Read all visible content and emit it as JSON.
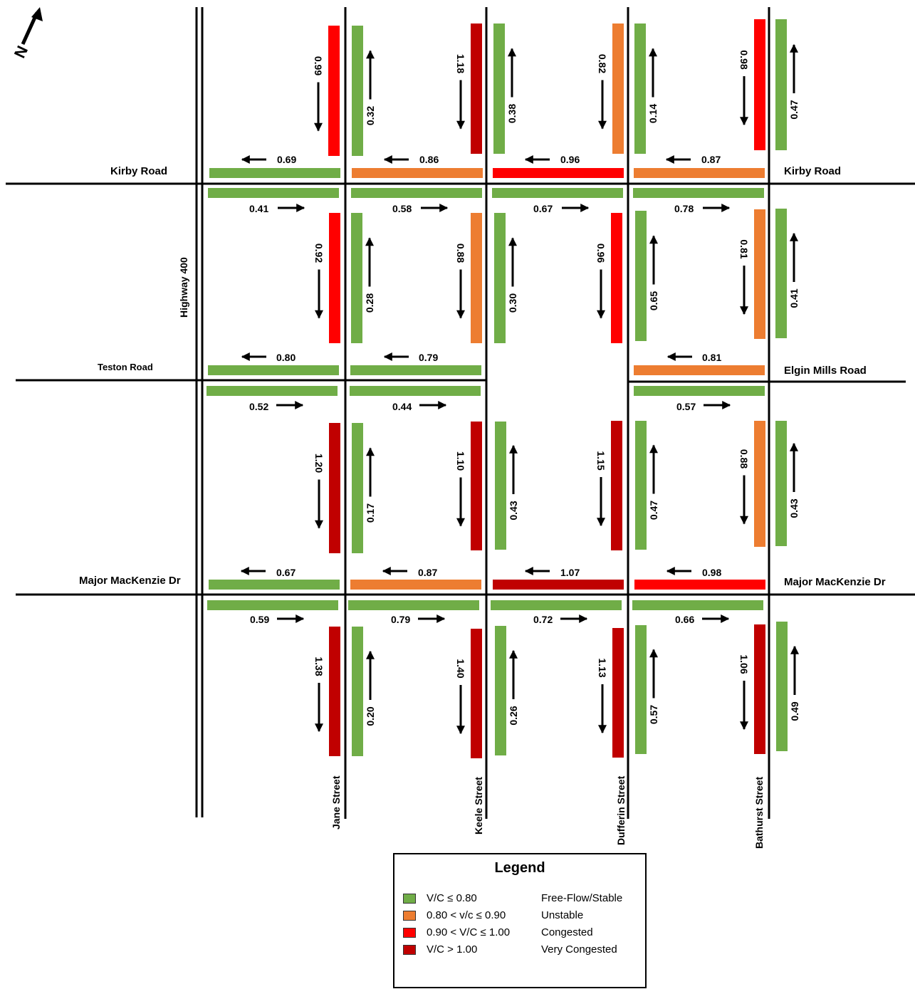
{
  "colors": {
    "free_flow": "#70ad47",
    "unstable": "#ed7d31",
    "congested": "#ff0000",
    "very_congested": "#c00000",
    "road": "#000000"
  },
  "east_west_roads": {
    "kirby_west": "Kirby Road",
    "kirby_east": "Kirby Road",
    "teston": "Teston Road",
    "elgin_mills": "Elgin Mills Road",
    "major_mac_west": "Major MacKenzie Dr",
    "major_mac_east": "Major MacKenzie Dr"
  },
  "north_south_roads": {
    "highway_400": "Highway 400",
    "jane": "Jane Street",
    "keele": "Keele Street",
    "dufferin": "Dufferin Street",
    "bathurst": "Bathurst Street"
  },
  "segments": {
    "row1": {
      "wb": [
        "0.69",
        "0.86",
        "0.96",
        "0.87"
      ],
      "sb": [
        "0.99",
        "1.18",
        "0.82",
        "0.98"
      ],
      "nb": [
        "0.32",
        "0.38",
        "0.14",
        "0.47"
      ]
    },
    "row2": {
      "eb": [
        "0.41",
        "0.58",
        "0.67",
        "0.78"
      ],
      "wb": [
        "0.80",
        "0.79",
        "0.81"
      ],
      "sb": [
        "0.92",
        "0.88",
        "0.96",
        "0.81"
      ],
      "nb": [
        "0.28",
        "0.30",
        "0.65",
        "0.41"
      ]
    },
    "row3": {
      "eb": [
        "0.52",
        "0.44",
        "0.57"
      ],
      "wb": [
        "0.67",
        "0.87",
        "1.07",
        "0.98"
      ],
      "sb": [
        "1.20",
        "1.10",
        "1.15",
        "0.88"
      ],
      "nb": [
        "0.17",
        "0.43",
        "0.47",
        "0.43"
      ]
    },
    "row4": {
      "eb": [
        "0.59",
        "0.79",
        "0.72",
        "0.66"
      ],
      "sb": [
        "1.38",
        "1.40",
        "1.13",
        "1.06"
      ],
      "nb": [
        "0.20",
        "0.26",
        "0.57",
        "0.49"
      ]
    }
  },
  "north_arrow": {
    "label": "N"
  },
  "legend": {
    "title": "Legend",
    "items": [
      {
        "condition": "V/C ≤ 0.80",
        "description": "Free-Flow/Stable",
        "color": "#70ad47"
      },
      {
        "condition": "0.80 < v/c ≤ 0.90",
        "description": "Unstable",
        "color": "#ed7d31"
      },
      {
        "condition": "0.90 < V/C ≤ 1.00",
        "description": "Congested",
        "color": "#ff0000"
      },
      {
        "condition": "V/C > 1.00",
        "description": "Very Congested",
        "color": "#c00000"
      }
    ]
  }
}
